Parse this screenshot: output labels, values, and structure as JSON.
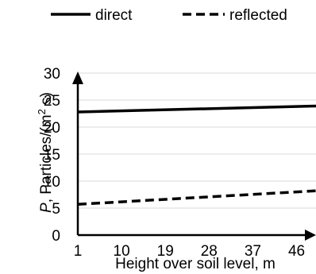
{
  "chart_data": {
    "type": "line",
    "title": "",
    "xlabel": "Height over soil level, m",
    "ylabel": {
      "italic": "P",
      "text": ", Particles/(m",
      "sup": "2",
      "tail": " s)"
    },
    "x_ticks": [
      "1",
      "10",
      "19",
      "28",
      "37",
      "46"
    ],
    "y_ticks": [
      "0",
      "5",
      "10",
      "15",
      "20",
      "25",
      "30"
    ],
    "xlim": [
      1,
      50
    ],
    "ylim": [
      0,
      30
    ],
    "grid": true,
    "legend_position": "top",
    "series": [
      {
        "name": "direct",
        "style": "solid",
        "color": "#000000",
        "x": [
          1,
          50
        ],
        "y": [
          22.8,
          23.9
        ]
      },
      {
        "name": "reflected",
        "style": "dashed",
        "color": "#000000",
        "x": [
          1,
          50
        ],
        "y": [
          5.7,
          8.2
        ]
      }
    ]
  }
}
